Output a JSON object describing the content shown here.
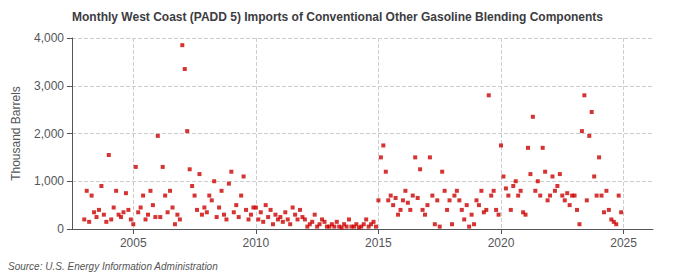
{
  "chart_data": {
    "type": "scatter",
    "title": "Monthly West Coast (PADD 5) Imports of Conventional Other Gasoline Blending Components",
    "ylabel": "Thousand Barrels",
    "annotations": [
      "Source: U.S. Energy Information Administration"
    ],
    "color": "#cc0000",
    "marker": "square",
    "grid": true,
    "xlim": [
      2002.5,
      2026.2
    ],
    "xticks": [
      2005,
      2010,
      2015,
      2020,
      2025
    ],
    "ylim": [
      0,
      4000
    ],
    "yticks": [
      0,
      {
        "value": 1000,
        "label": "1,000"
      },
      {
        "value": 2000,
        "label": "2,000"
      },
      {
        "value": 3000,
        "label": "3,000"
      },
      {
        "value": 4000,
        "label": "4,000"
      }
    ],
    "x": [
      2003.0,
      2003.1,
      2003.2,
      2003.3,
      2003.4,
      2003.5,
      2003.6,
      2003.7,
      2003.8,
      2003.9,
      2004.0,
      2004.1,
      2004.2,
      2004.3,
      2004.4,
      2004.5,
      2004.6,
      2004.7,
      2004.8,
      2004.9,
      2005.0,
      2005.1,
      2005.2,
      2005.3,
      2005.4,
      2005.5,
      2005.6,
      2005.7,
      2005.8,
      2005.9,
      2006.0,
      2006.1,
      2006.2,
      2006.3,
      2006.4,
      2006.5,
      2006.6,
      2006.7,
      2006.8,
      2006.9,
      2007.0,
      2007.1,
      2007.2,
      2007.3,
      2007.4,
      2007.5,
      2007.6,
      2007.7,
      2007.8,
      2007.9,
      2008.0,
      2008.1,
      2008.2,
      2008.3,
      2008.4,
      2008.5,
      2008.6,
      2008.7,
      2008.8,
      2008.9,
      2009.0,
      2009.1,
      2009.2,
      2009.3,
      2009.4,
      2009.5,
      2009.6,
      2009.7,
      2009.8,
      2009.9,
      2010.0,
      2010.1,
      2010.2,
      2010.3,
      2010.4,
      2010.5,
      2010.6,
      2010.7,
      2010.8,
      2010.9,
      2011.0,
      2011.1,
      2011.2,
      2011.3,
      2011.4,
      2011.5,
      2011.6,
      2011.7,
      2011.8,
      2011.9,
      2012.0,
      2012.1,
      2012.2,
      2012.3,
      2012.4,
      2012.5,
      2012.6,
      2012.7,
      2012.8,
      2012.9,
      2013.0,
      2013.1,
      2013.2,
      2013.3,
      2013.4,
      2013.5,
      2013.6,
      2013.7,
      2013.8,
      2013.9,
      2014.0,
      2014.1,
      2014.2,
      2014.3,
      2014.4,
      2014.5,
      2014.6,
      2014.7,
      2014.8,
      2014.9,
      2015.0,
      2015.1,
      2015.2,
      2015.3,
      2015.4,
      2015.5,
      2015.6,
      2015.7,
      2015.8,
      2015.9,
      2016.0,
      2016.1,
      2016.2,
      2016.3,
      2016.4,
      2016.5,
      2016.6,
      2016.7,
      2016.8,
      2016.9,
      2017.0,
      2017.1,
      2017.2,
      2017.3,
      2017.4,
      2017.5,
      2017.6,
      2017.7,
      2017.8,
      2017.9,
      2018.0,
      2018.1,
      2018.2,
      2018.3,
      2018.4,
      2018.5,
      2018.6,
      2018.7,
      2018.8,
      2018.9,
      2019.0,
      2019.1,
      2019.2,
      2019.3,
      2019.4,
      2019.5,
      2019.6,
      2019.7,
      2019.8,
      2019.9,
      2020.0,
      2020.1,
      2020.2,
      2020.3,
      2020.4,
      2020.5,
      2020.6,
      2020.7,
      2020.8,
      2020.9,
      2021.0,
      2021.1,
      2021.2,
      2021.3,
      2021.4,
      2021.5,
      2021.6,
      2021.7,
      2021.8,
      2021.9,
      2022.0,
      2022.1,
      2022.2,
      2022.3,
      2022.4,
      2022.5,
      2022.6,
      2022.7,
      2022.8,
      2022.9,
      2023.0,
      2023.1,
      2023.2,
      2023.3,
      2023.4,
      2023.5,
      2023.6,
      2023.7,
      2023.8,
      2023.9,
      2024.0,
      2024.1,
      2024.2,
      2024.3,
      2024.4,
      2024.5,
      2024.6,
      2024.7,
      2024.8,
      2024.9
    ],
    "values": [
      200,
      800,
      150,
      700,
      350,
      250,
      400,
      900,
      300,
      150,
      1550,
      200,
      450,
      800,
      300,
      250,
      350,
      750,
      400,
      200,
      100,
      1300,
      350,
      450,
      700,
      200,
      300,
      800,
      500,
      250,
      1950,
      250,
      1300,
      700,
      350,
      800,
      450,
      100,
      300,
      200,
      3850,
      3350,
      2050,
      1250,
      900,
      700,
      400,
      1150,
      300,
      450,
      350,
      700,
      600,
      1000,
      250,
      450,
      800,
      300,
      200,
      950,
      1200,
      350,
      500,
      250,
      700,
      1100,
      400,
      200,
      300,
      450,
      450,
      200,
      350,
      150,
      500,
      250,
      400,
      100,
      300,
      200,
      250,
      150,
      350,
      200,
      100,
      450,
      300,
      200,
      400,
      250,
      200,
      50,
      100,
      150,
      300,
      50,
      100,
      200,
      150,
      50,
      50,
      100,
      50,
      150,
      50,
      30,
      100,
      50,
      200,
      50,
      50,
      100,
      30,
      50,
      100,
      200,
      50,
      100,
      150,
      50,
      600,
      1500,
      1750,
      1200,
      600,
      700,
      500,
      650,
      300,
      400,
      600,
      800,
      550,
      400,
      700,
      1500,
      650,
      1250,
      400,
      300,
      500,
      1500,
      700,
      100,
      600,
      50,
      1200,
      800,
      400,
      600,
      100,
      700,
      800,
      600,
      400,
      200,
      500,
      50,
      300,
      100,
      600,
      500,
      800,
      350,
      400,
      2800,
      700,
      800,
      400,
      300,
      1750,
      1100,
      850,
      700,
      400,
      900,
      1000,
      700,
      800,
      350,
      300,
      1700,
      1150,
      2350,
      800,
      1000,
      700,
      1700,
      1200,
      600,
      700,
      1100,
      800,
      900,
      1150,
      700,
      600,
      750,
      500,
      700,
      700,
      400,
      100,
      2050,
      2800,
      600,
      1950,
      2450,
      1100,
      700,
      1500,
      700,
      350,
      800,
      400,
      200,
      150,
      100,
      700,
      350
    ]
  }
}
